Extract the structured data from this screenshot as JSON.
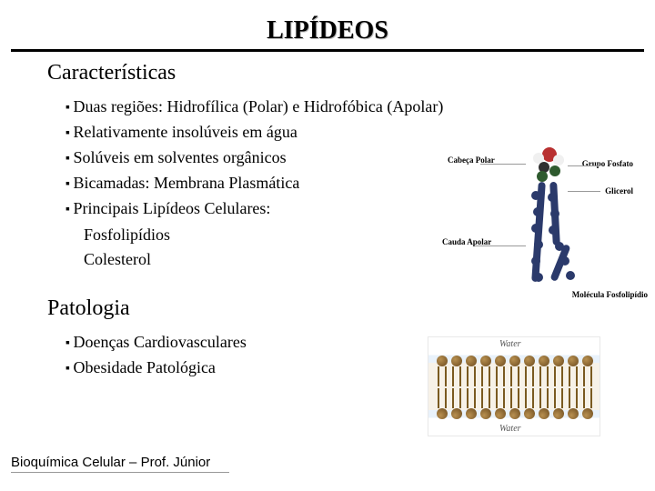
{
  "title": "LIPÍDEOS",
  "sections": {
    "char": {
      "heading": "Características",
      "bullets": [
        "Duas regiões: Hidrofílica (Polar) e Hidrofóbica (Apolar)",
        "Relativamente insolúveis em água",
        "Solúveis em solventes orgânicos",
        "Bicamadas: Membrana Plasmática",
        "Principais Lipídeos Celulares:"
      ],
      "sub": [
        "Fosfolipídios",
        "Colesterol"
      ]
    },
    "path": {
      "heading": "Patologia",
      "bullets": [
        "Doenças Cardiovasculares",
        "Obesidade Patológica"
      ]
    }
  },
  "footer": "Bioquímica Celular – Prof. Júnior",
  "molecule": {
    "labels": {
      "head": "Cabeça\nPolar",
      "phosphate": "Grupo\nFosfato",
      "glycerol": "Glicerol",
      "tail": "Cauda\nApolar",
      "whole": "Molécula\nFosfolipídio"
    },
    "colors": {
      "phosphate": "#b83030",
      "glycerol": "#2e5a2e",
      "carbon": "#303030",
      "oxygen": "#f0f0f0",
      "chain": "#2b3a6b",
      "callout": "#999999"
    }
  },
  "bilayer": {
    "water_label": "Water",
    "count_per_row": 11,
    "colors": {
      "head": "#6b4a1e",
      "tail": "#7a5a20",
      "water_band": "#e9f2fb",
      "bg": "#f7f2e8"
    }
  }
}
